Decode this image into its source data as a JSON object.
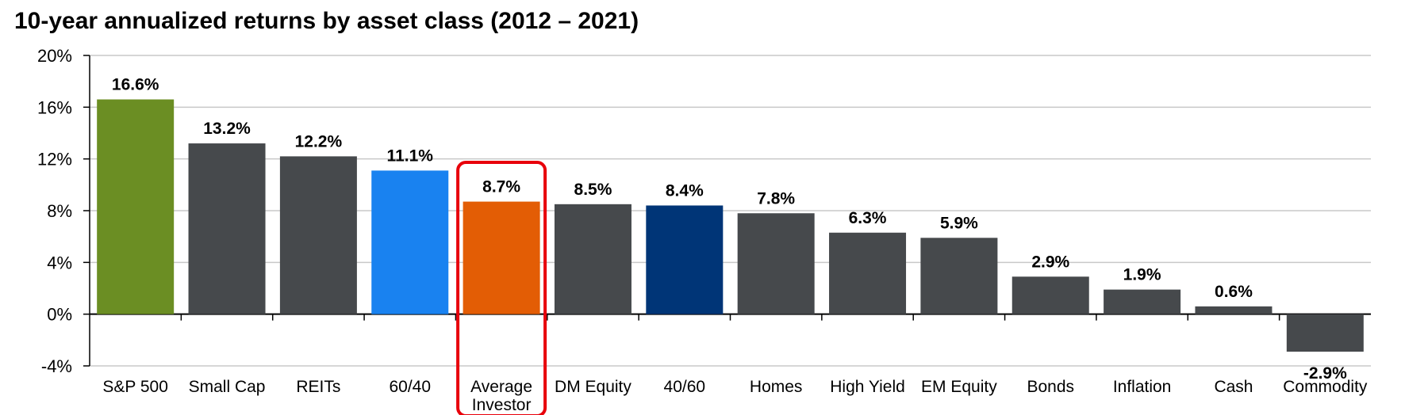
{
  "chart_data": {
    "type": "bar",
    "title": "10-year annualized returns by asset class (2012 – 2021)",
    "xlabel": "",
    "ylabel": "",
    "ylim": [
      -4,
      20
    ],
    "yticks": [
      20,
      16,
      12,
      8,
      4,
      0,
      -4
    ],
    "ytick_labels": [
      "20%",
      "16%",
      "12%",
      "8%",
      "4%",
      "0%",
      "-4%"
    ],
    "grid": true,
    "categories": [
      "S&P 500",
      "Small Cap",
      "REITs",
      "60/40",
      "Average Investor",
      "DM Equity",
      "40/60",
      "Homes",
      "High Yield",
      "EM Equity",
      "Bonds",
      "Inflation",
      "Cash",
      "Commodity"
    ],
    "category_lines": [
      [
        "S&P 500"
      ],
      [
        "Small Cap"
      ],
      [
        "REITs"
      ],
      [
        "60/40"
      ],
      [
        "Average",
        "Investor"
      ],
      [
        "DM Equity"
      ],
      [
        "40/60"
      ],
      [
        "Homes"
      ],
      [
        "High Yield"
      ],
      [
        "EM Equity"
      ],
      [
        "Bonds"
      ],
      [
        "Inflation"
      ],
      [
        "Cash"
      ],
      [
        "Commodity"
      ]
    ],
    "values": [
      16.6,
      13.2,
      12.2,
      11.1,
      8.7,
      8.5,
      8.4,
      7.8,
      6.3,
      5.9,
      2.9,
      1.9,
      0.6,
      -2.9
    ],
    "value_labels": [
      "16.6%",
      "13.2%",
      "12.2%",
      "11.1%",
      "8.7%",
      "8.5%",
      "8.4%",
      "7.8%",
      "6.3%",
      "5.9%",
      "2.9%",
      "1.9%",
      "0.6%",
      "-2.9%"
    ],
    "colors": [
      "#6B8E23",
      "#46494C",
      "#46494C",
      "#1982F0",
      "#E35D05",
      "#46494C",
      "#003577",
      "#46494C",
      "#46494C",
      "#46494C",
      "#46494C",
      "#46494C",
      "#46494C",
      "#46494C"
    ],
    "highlight_category": "Average Investor",
    "highlight_color": "#E8000B",
    "grid_color": "#C8C8C8"
  }
}
